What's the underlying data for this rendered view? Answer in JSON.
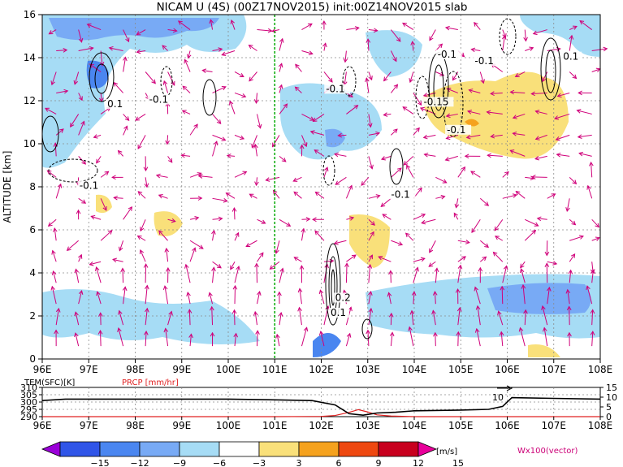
{
  "title": "NICAM U (4S) (00Z17NOV2015) init:00Z14NOV2015 slab",
  "chart_data": [
    {
      "type": "heatmap",
      "title": "NICAM U (4S) (00Z17NOV2015) init:00Z14NOV2015 slab",
      "xlabel": "",
      "ylabel": "ALTITUDE [km]",
      "xlim": [
        96,
        108
      ],
      "ylim": [
        0,
        16
      ],
      "x_ticks": [
        "96E",
        "97E",
        "98E",
        "99E",
        "100E",
        "101E",
        "102E",
        "103E",
        "104E",
        "105E",
        "106E",
        "107E",
        "108E"
      ],
      "y_ticks": [
        "0",
        "2",
        "4",
        "6",
        "8",
        "10",
        "12",
        "14",
        "16"
      ],
      "grid": true,
      "marker_line_lon": 101,
      "contour_labels": [
        {
          "text": "0.1",
          "lon": 97.4,
          "alt": 11.7
        },
        {
          "text": "-0.1",
          "lon": 98.3,
          "alt": 11.9
        },
        {
          "text": "-0.1",
          "lon": 96.8,
          "alt": 7.9
        },
        {
          "text": "-0.1",
          "lon": 104.5,
          "alt": 14.0
        },
        {
          "text": "-0.1",
          "lon": 105.3,
          "alt": 13.7
        },
        {
          "text": "-0.1",
          "lon": 102.1,
          "alt": 12.4
        },
        {
          "text": "-0.15",
          "lon": 104.2,
          "alt": 11.8
        },
        {
          "text": "-0.1",
          "lon": 104.7,
          "alt": 10.5
        },
        {
          "text": "0.1",
          "lon": 107.2,
          "alt": 13.9
        },
        {
          "text": "-0.1",
          "lon": 103.5,
          "alt": 7.5
        },
        {
          "text": "0.1",
          "lon": 102.2,
          "alt": 2.0
        },
        {
          "text": "0.2",
          "lon": 102.3,
          "alt": 2.7
        }
      ],
      "colorbar": {
        "levels": [
          -15,
          -12,
          -9,
          -6,
          -3,
          3,
          6,
          9,
          12,
          15
        ],
        "colors": [
          "#9a00d8",
          "#3055e8",
          "#4a86f0",
          "#78aaf5",
          "#a6dcf5",
          "#ffffff",
          "#f9e07a",
          "#f5a21e",
          "#ee4810",
          "#c8001e",
          "#e8009a"
        ],
        "unit": "[m/s]"
      },
      "vector_label": "Wx100(vector)"
    },
    {
      "type": "line",
      "xlim": [
        96,
        108
      ],
      "x_ticks": [
        "96E",
        "97E",
        "98E",
        "99E",
        "100E",
        "101E",
        "102E",
        "103E",
        "104E",
        "105E",
        "106E",
        "107E",
        "108E"
      ],
      "left_axis": {
        "label": "TEM(SFC)[K]",
        "ticks": [
          "290",
          "295",
          "300",
          "305",
          "310"
        ],
        "ylim": [
          290,
          310
        ]
      },
      "right_axis": {
        "label": "PRCP [mm/hr]",
        "ticks": [
          "0",
          "5",
          "10",
          "15"
        ],
        "ylim": [
          0,
          15
        ]
      },
      "arrow_value": "10",
      "series": [
        {
          "name": "TEM(SFC)[K]",
          "color": "#000000",
          "x": [
            96,
            96.5,
            97,
            98,
            99,
            100,
            101,
            101.8,
            102.3,
            102.6,
            102.9,
            103.2,
            103.6,
            104,
            105,
            105.6,
            105.9,
            106.1,
            107,
            108
          ],
          "y": [
            301,
            302,
            302,
            302,
            302,
            302,
            301.5,
            301,
            298,
            292,
            291,
            292.5,
            293,
            294,
            294.5,
            295,
            297,
            303,
            302.5,
            302
          ]
        },
        {
          "name": "PRCP [mm/hr]",
          "color": "#e02020",
          "x": [
            96,
            101,
            102,
            102.3,
            102.6,
            102.8,
            103,
            103.2,
            103.5,
            104,
            108
          ],
          "y": [
            0,
            0,
            0.1,
            0.6,
            2.2,
            3.6,
            2.4,
            0.9,
            0.3,
            0,
            0
          ]
        }
      ]
    }
  ]
}
